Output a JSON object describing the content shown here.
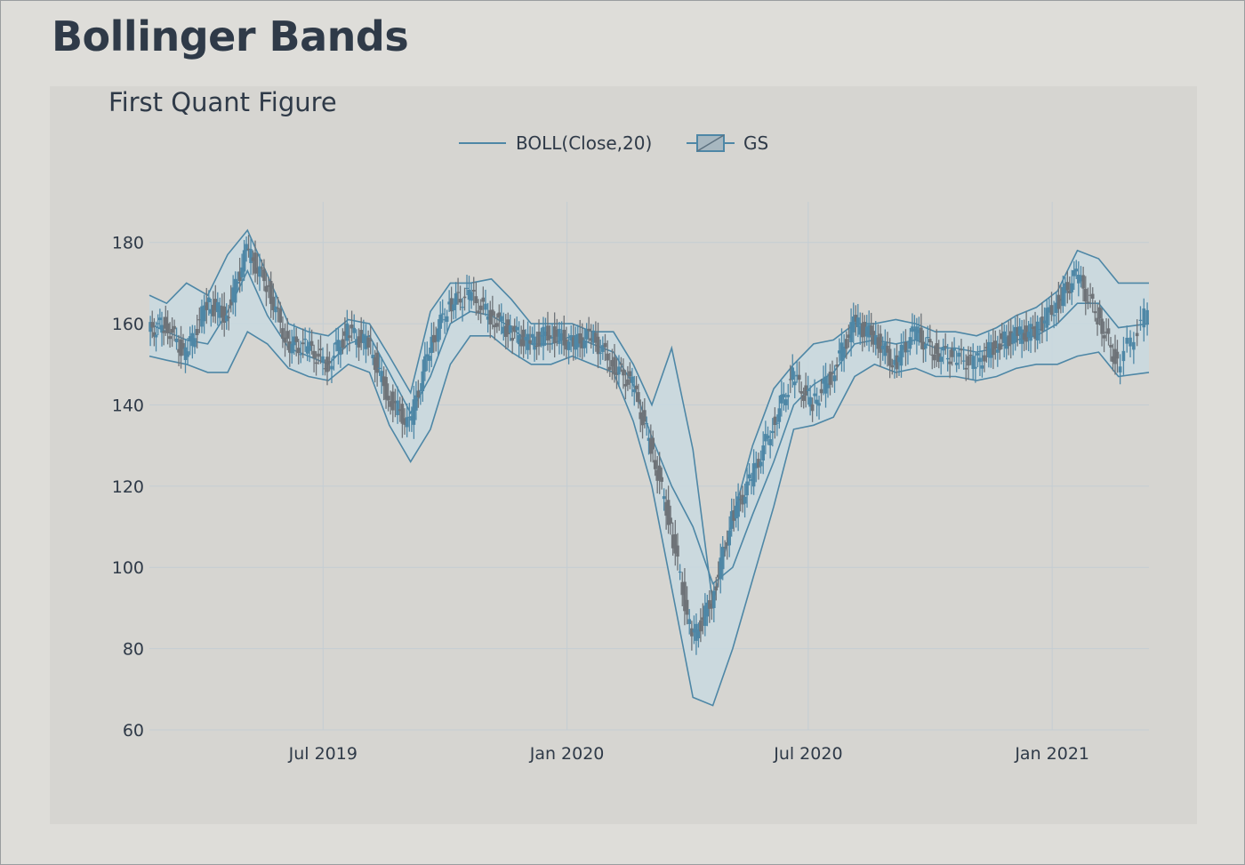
{
  "page": {
    "title": "Bollinger Bands"
  },
  "chart_data": {
    "type": "line",
    "title": "First Quant Figure",
    "xlabel": "",
    "ylabel": "",
    "ylim": [
      60,
      190
    ],
    "xlim": [
      "2019-02-20",
      "2021-03-15"
    ],
    "y_ticks": [
      60,
      80,
      100,
      120,
      140,
      160,
      180
    ],
    "x_ticks": [
      {
        "date": "2019-07-01",
        "label": "Jul 2019"
      },
      {
        "date": "2020-01-01",
        "label": "Jan 2020"
      },
      {
        "date": "2020-07-01",
        "label": "Jul 2020"
      },
      {
        "date": "2021-01-01",
        "label": "Jan 2021"
      }
    ],
    "grid": true,
    "legend": {
      "placement": "top-center",
      "entries": [
        {
          "name": "BOLL(Close,20)",
          "kind": "line"
        },
        {
          "name": "GS",
          "kind": "candlestick"
        }
      ]
    },
    "colors": {
      "band": "#4e87a6",
      "band_fill": "#c9d9e1",
      "candle": "#6e7378",
      "grid": "#c4cdd3"
    },
    "series": [
      {
        "name": "BOLL(Close,20)",
        "x": [
          "2019-02-20",
          "2019-03-05",
          "2019-03-20",
          "2019-04-05",
          "2019-04-20",
          "2019-05-05",
          "2019-05-20",
          "2019-06-05",
          "2019-06-20",
          "2019-07-05",
          "2019-07-20",
          "2019-08-05",
          "2019-08-20",
          "2019-09-05",
          "2019-09-20",
          "2019-10-05",
          "2019-10-20",
          "2019-11-05",
          "2019-11-20",
          "2019-12-05",
          "2019-12-20",
          "2020-01-05",
          "2020-01-20",
          "2020-02-05",
          "2020-02-20",
          "2020-03-05",
          "2020-03-20",
          "2020-04-05",
          "2020-04-20",
          "2020-05-05",
          "2020-05-20",
          "2020-06-05",
          "2020-06-20",
          "2020-07-05",
          "2020-07-20",
          "2020-08-05",
          "2020-08-20",
          "2020-09-05",
          "2020-09-20",
          "2020-10-05",
          "2020-10-20",
          "2020-11-05",
          "2020-11-20",
          "2020-12-05",
          "2020-12-20",
          "2021-01-05",
          "2021-01-20",
          "2021-02-05",
          "2021-02-20",
          "2021-03-15"
        ],
        "upper": [
          167,
          165,
          170,
          167,
          177,
          183,
          172,
          160,
          158,
          157,
          161,
          160,
          152,
          143,
          163,
          170,
          170,
          171,
          166,
          160,
          160,
          160,
          158,
          158,
          150,
          140,
          154,
          129,
          91,
          112,
          130,
          144,
          150,
          155,
          156,
          160,
          160,
          161,
          160,
          158,
          158,
          157,
          159,
          162,
          164,
          168,
          178,
          176,
          170,
          170
        ],
        "middle": [
          160,
          158,
          156,
          155,
          163,
          173,
          162,
          154,
          152,
          150,
          155,
          157,
          148,
          138,
          147,
          160,
          163,
          162,
          159,
          155,
          155,
          157,
          155,
          153,
          145,
          132,
          120,
          110,
          96,
          100,
          113,
          126,
          140,
          145,
          148,
          155,
          156,
          155,
          156,
          154,
          154,
          153,
          154,
          156,
          157,
          160,
          165,
          165,
          159,
          160
        ],
        "lower": [
          152,
          151,
          150,
          148,
          148,
          158,
          155,
          149,
          147,
          146,
          150,
          148,
          135,
          126,
          134,
          150,
          157,
          157,
          153,
          150,
          150,
          152,
          150,
          148,
          136,
          120,
          95,
          68,
          66,
          80,
          97,
          115,
          134,
          135,
          137,
          147,
          150,
          148,
          149,
          147,
          147,
          146,
          147,
          149,
          150,
          150,
          152,
          153,
          147,
          148
        ]
      },
      {
        "name": "GS",
        "x": [
          "2019-02-20",
          "2019-03-05",
          "2019-03-20",
          "2019-04-05",
          "2019-04-20",
          "2019-05-05",
          "2019-05-20",
          "2019-06-05",
          "2019-06-20",
          "2019-07-05",
          "2019-07-20",
          "2019-08-05",
          "2019-08-20",
          "2019-09-05",
          "2019-09-20",
          "2019-10-05",
          "2019-10-20",
          "2019-11-05",
          "2019-11-20",
          "2019-12-05",
          "2019-12-20",
          "2020-01-05",
          "2020-01-20",
          "2020-02-05",
          "2020-02-20",
          "2020-03-05",
          "2020-03-20",
          "2020-04-05",
          "2020-04-20",
          "2020-05-05",
          "2020-05-20",
          "2020-06-05",
          "2020-06-20",
          "2020-07-05",
          "2020-07-20",
          "2020-08-05",
          "2020-08-20",
          "2020-09-05",
          "2020-09-20",
          "2020-10-05",
          "2020-10-20",
          "2020-11-05",
          "2020-11-20",
          "2020-12-05",
          "2020-12-20",
          "2021-01-05",
          "2021-01-20",
          "2021-02-05",
          "2021-02-20",
          "2021-03-15"
        ],
        "close": [
          158,
          160,
          152,
          165,
          162,
          178,
          170,
          155,
          154,
          150,
          158,
          155,
          142,
          135,
          154,
          165,
          167,
          162,
          158,
          155,
          158,
          155,
          157,
          150,
          145,
          130,
          110,
          82,
          92,
          112,
          122,
          135,
          147,
          140,
          148,
          160,
          157,
          150,
          158,
          153,
          152,
          150,
          155,
          157,
          158,
          165,
          172,
          162,
          150,
          163
        ]
      }
    ]
  }
}
